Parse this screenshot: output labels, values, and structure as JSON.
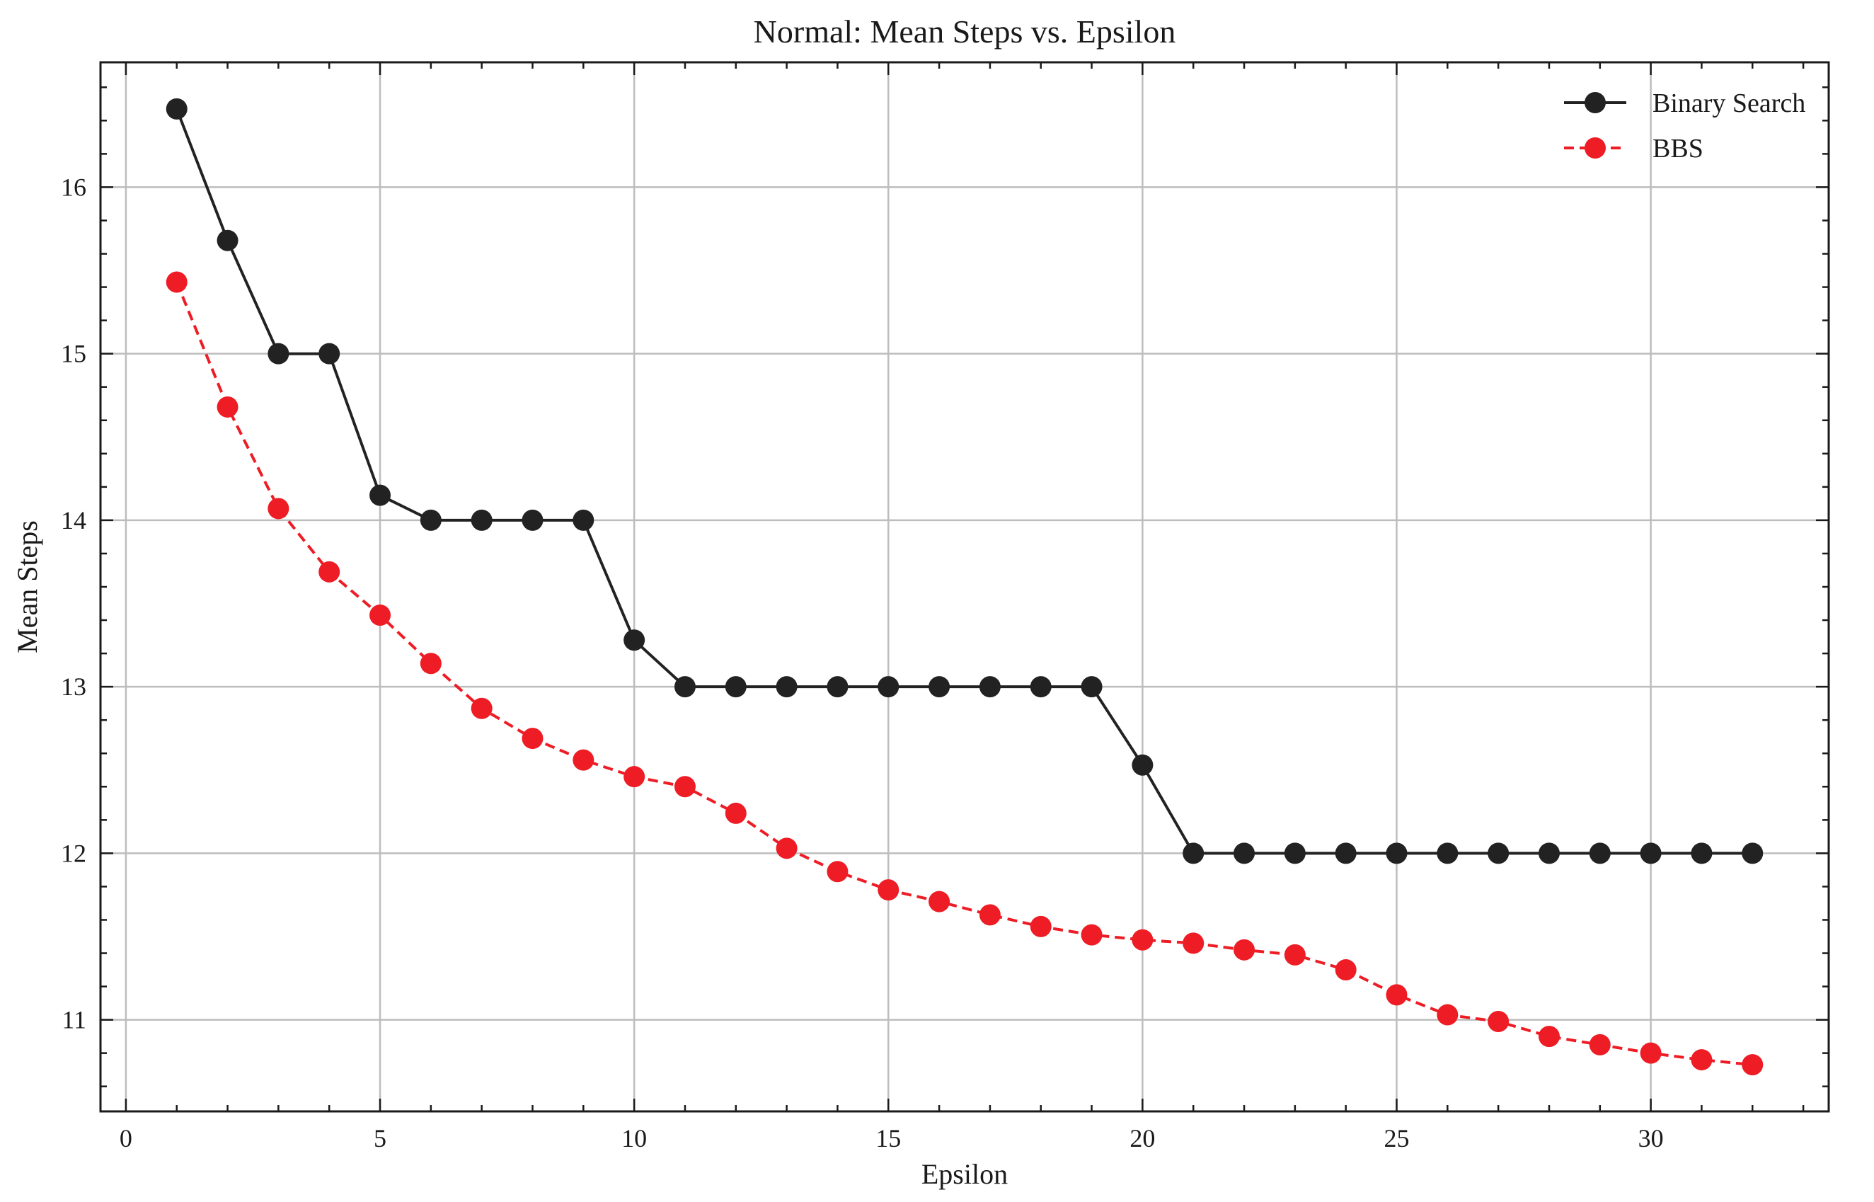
{
  "chart_data": {
    "type": "line",
    "title": "Normal: Mean Steps vs. Epsilon",
    "xlabel": "Epsilon",
    "ylabel": "Mean Steps",
    "xlim": [
      -0.5,
      33.5
    ],
    "ylim": [
      10.45,
      16.75
    ],
    "xticks": [
      0,
      5,
      10,
      15,
      20,
      25,
      30
    ],
    "yticks": [
      11,
      12,
      13,
      14,
      15,
      16
    ],
    "grid": true,
    "legend_position": "top-right",
    "x": [
      1,
      2,
      3,
      4,
      5,
      6,
      7,
      8,
      9,
      10,
      11,
      12,
      13,
      14,
      15,
      16,
      17,
      18,
      19,
      20,
      21,
      22,
      23,
      24,
      25,
      26,
      27,
      28,
      29,
      30,
      31,
      32
    ],
    "series": [
      {
        "name": "Binary Search",
        "color": "#222222",
        "line_style": "solid",
        "marker": "circle",
        "values": [
          16.47,
          15.68,
          15.0,
          15.0,
          14.15,
          14.0,
          14.0,
          14.0,
          14.0,
          13.28,
          13.0,
          13.0,
          13.0,
          13.0,
          13.0,
          13.0,
          13.0,
          13.0,
          13.0,
          12.53,
          12.0,
          12.0,
          12.0,
          12.0,
          12.0,
          12.0,
          12.0,
          12.0,
          12.0,
          12.0,
          12.0,
          12.0
        ]
      },
      {
        "name": "BBS",
        "color": "#ee1c25",
        "line_style": "dashed",
        "marker": "circle",
        "values": [
          15.43,
          14.68,
          14.07,
          13.69,
          13.43,
          13.14,
          12.87,
          12.69,
          12.56,
          12.46,
          12.4,
          12.24,
          12.03,
          11.89,
          11.78,
          11.71,
          11.63,
          11.56,
          11.51,
          11.48,
          11.46,
          11.42,
          11.39,
          11.3,
          11.15,
          11.03,
          10.99,
          10.9,
          10.85,
          10.8,
          10.76,
          10.73
        ]
      }
    ]
  }
}
